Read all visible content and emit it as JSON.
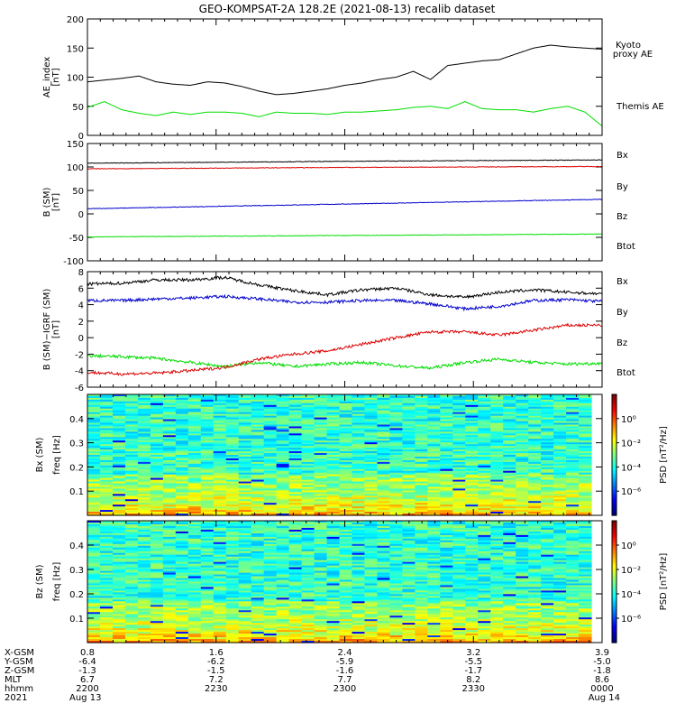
{
  "title": "GEO-KOMPSAT-2A 128.2E (2021-08-13) recalib dataset",
  "colors": {
    "black": "#000000",
    "green": "#00dd00",
    "red": "#dd0000",
    "blue": "#0000cc"
  },
  "chart_data": [
    {
      "type": "line",
      "id": "ae",
      "ylabel": [
        "AE_index",
        "[nT]"
      ],
      "ylim": [
        0,
        200
      ],
      "yticks": [
        0,
        50,
        100,
        150,
        200
      ],
      "x": [
        0,
        4,
        8,
        12,
        16,
        20,
        24,
        28,
        32,
        36,
        40,
        44,
        48,
        52,
        56,
        60,
        64,
        68,
        72,
        76,
        80,
        84,
        88,
        92,
        96,
        100,
        104,
        108,
        112,
        116,
        120
      ],
      "series": [
        {
          "name": "Kyoto proxy AE",
          "label_lines": [
            "Kyoto",
            "proxy AE"
          ],
          "color": "#00dd00",
          "values": [
            48,
            58,
            44,
            38,
            34,
            40,
            36,
            40,
            40,
            38,
            32,
            40,
            38,
            38,
            36,
            40,
            40,
            42,
            44,
            48,
            50,
            46,
            58,
            46,
            44,
            44,
            40,
            46,
            50,
            40,
            16
          ]
        },
        {
          "name": "Themis AE",
          "label_lines": [
            "Themis AE"
          ],
          "color": "#000000",
          "values": [
            92,
            95,
            98,
            102,
            92,
            88,
            86,
            92,
            90,
            84,
            76,
            70,
            72,
            76,
            80,
            86,
            90,
            96,
            100,
            110,
            96,
            120,
            124,
            128,
            130,
            140,
            150,
            155,
            152,
            150,
            148
          ]
        }
      ]
    },
    {
      "type": "line",
      "id": "bsm",
      "ylabel": [
        "B (SM)",
        "[nT]"
      ],
      "ylim": [
        -100,
        150
      ],
      "yticks": [
        -100,
        -50,
        0,
        50,
        100,
        150
      ],
      "x": [
        0,
        60,
        120
      ],
      "series": [
        {
          "name": "Bx",
          "color": "#0000cc",
          "values": [
            11,
            21,
            31
          ]
        },
        {
          "name": "By",
          "color": "#00dd00",
          "values": [
            -49,
            -46,
            -43
          ]
        },
        {
          "name": "Bz",
          "color": "#dd0000",
          "values": [
            96,
            99,
            101
          ]
        },
        {
          "name": "Btot",
          "color": "#000000",
          "values": [
            108,
            112,
            115
          ]
        }
      ]
    },
    {
      "type": "line",
      "id": "bdiff",
      "ylabel": [
        "B (SM)−IGRF (SM)",
        "[nT]"
      ],
      "ylim": [
        -6,
        8
      ],
      "yticks": [
        -6,
        -4,
        -2,
        0,
        2,
        4,
        6,
        8
      ],
      "x": [
        0,
        8,
        16,
        24,
        32,
        40,
        48,
        56,
        64,
        72,
        80,
        88,
        96,
        104,
        112,
        120
      ],
      "series": [
        {
          "name": "Bx",
          "color": "#0000cc",
          "values": [
            4.5,
            4.5,
            4.7,
            4.8,
            5.0,
            4.7,
            4.3,
            4.3,
            4.5,
            4.5,
            4.1,
            3.5,
            3.8,
            4.5,
            4.6,
            4.4
          ]
        },
        {
          "name": "By",
          "color": "#00dd00",
          "values": [
            -2.2,
            -2.3,
            -2.5,
            -3.0,
            -3.5,
            -3.0,
            -3.5,
            -3.2,
            -3.0,
            -3.4,
            -3.7,
            -3.0,
            -2.6,
            -3.0,
            -3.2,
            -3.1
          ]
        },
        {
          "name": "Bz",
          "color": "#dd0000",
          "values": [
            -4.2,
            -4.4,
            -4.3,
            -4.0,
            -3.6,
            -2.6,
            -2.0,
            -1.6,
            -0.8,
            0.0,
            0.7,
            0.7,
            0.3,
            0.9,
            1.5,
            1.5
          ]
        },
        {
          "name": "Btot",
          "color": "#000000",
          "values": [
            6.5,
            6.6,
            7.0,
            7.0,
            7.3,
            6.4,
            5.7,
            5.2,
            5.8,
            6.0,
            5.2,
            4.9,
            5.5,
            5.8,
            5.5,
            5.3
          ]
        }
      ]
    },
    {
      "type": "heatmap",
      "id": "bxpsd",
      "ylabel": [
        "Bx (SM)",
        "freq [Hz]"
      ],
      "ylim": [
        0,
        0.5
      ],
      "yticks": [
        0.1,
        0.2,
        0.3,
        0.4
      ],
      "colorbar_label": "PSD [nT²/Hz]"
    },
    {
      "type": "heatmap",
      "id": "bzpsd",
      "ylabel": [
        "Bz (SM)",
        "freq [Hz]"
      ],
      "ylim": [
        0,
        0.5
      ],
      "yticks": [
        0.1,
        0.2,
        0.3,
        0.4
      ],
      "colorbar_label": "PSD [nT²/Hz]"
    }
  ],
  "colorbar": {
    "ticks": [
      "10⁰",
      "10⁻²",
      "10⁻⁴",
      "10⁻⁶"
    ],
    "exponents": [
      0,
      -2,
      -4,
      -6
    ]
  },
  "ephemeris": {
    "rows": [
      "X-GSM",
      "Y-GSM",
      "Z-GSM",
      "MLT",
      "hhmm",
      "2021"
    ],
    "columns": [
      [
        "0.8",
        "-6.4",
        "-1.3",
        "6.7",
        "2200",
        "Aug 13"
      ],
      [
        "1.6",
        "-6.2",
        "-1.5",
        "7.2",
        "2230",
        ""
      ],
      [
        "2.4",
        "-5.9",
        "-1.6",
        "7.7",
        "2300",
        ""
      ],
      [
        "3.2",
        "-5.5",
        "-1.7",
        "8.2",
        "2330",
        ""
      ],
      [
        "3.9",
        "-5.0",
        "-1.8",
        "8.6",
        "0000",
        "Aug 14"
      ]
    ]
  }
}
